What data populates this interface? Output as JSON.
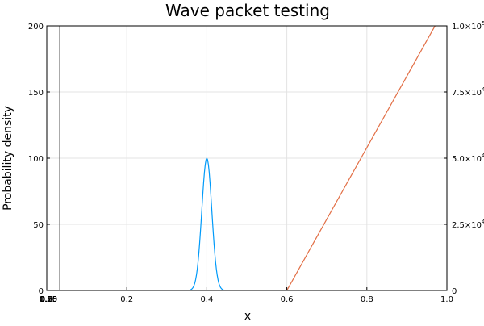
{
  "chart_data": {
    "type": "line",
    "title": "Wave packet testing",
    "xlabel": "x",
    "ylabel": "Probability density",
    "xlim": [
      0,
      1
    ],
    "ylim": [
      0,
      200
    ],
    "y2lim": [
      0,
      100000
    ],
    "grid": true,
    "x_ticks": [
      "0.0",
      "0.2",
      "0.4",
      "0.6",
      "0.8",
      "1.0"
    ],
    "x_ticks_overlap": [
      "0.25",
      "0.50",
      "0.75",
      "1.00"
    ],
    "y_ticks": [
      "0",
      "50",
      "100",
      "150",
      "200"
    ],
    "y2_ticks": [
      {
        "value": 0,
        "label": "0"
      },
      {
        "value": 25000,
        "label": "2.5×10",
        "exp": "4"
      },
      {
        "value": 50000,
        "label": "5.0×10",
        "exp": "4"
      },
      {
        "value": 75000,
        "label": "7.5×10",
        "exp": "4"
      },
      {
        "value": 100000,
        "label": "1.0×10",
        "exp": "5"
      }
    ],
    "series": [
      {
        "color": "#009af9",
        "axis": "left",
        "kind": "gaussian",
        "center": 0.4,
        "peak": 100,
        "sigma": 0.0125,
        "x_range": [
          0,
          1
        ]
      },
      {
        "color": "#e26f46",
        "axis": "right",
        "x": [
          0.0,
          0.6,
          1.0
        ],
        "y": [
          0,
          0,
          108000
        ]
      }
    ],
    "axis_line_x": 0.0
  }
}
